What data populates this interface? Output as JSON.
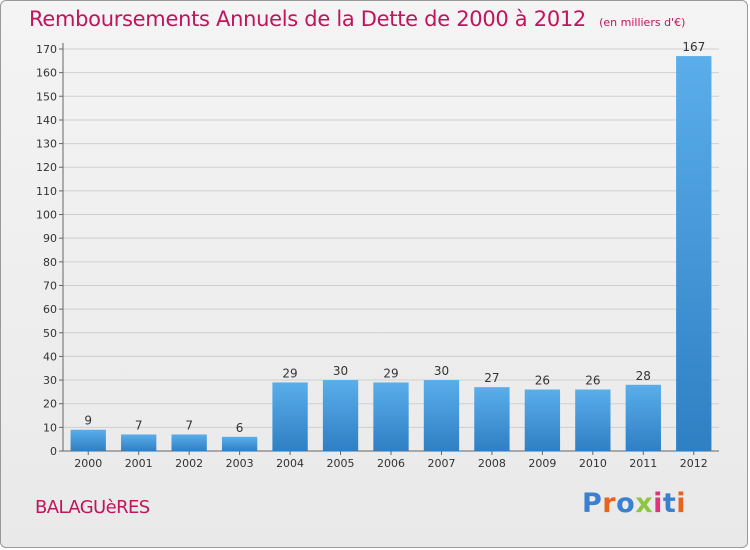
{
  "header": {
    "title": "Remboursements Annuels de la Dette de 2000 à 2012",
    "unit": "(en milliers d'€)"
  },
  "commune": "BALAGUèRES",
  "logo": {
    "text": "Proxiti",
    "letter_colors": [
      "#3a7fd0",
      "#e8641e",
      "#3a7fd0",
      "#8dc63f",
      "#e0347a",
      "#3a7fd0",
      "#e8641e"
    ]
  },
  "colors": {
    "bar_light": "#5aaeea",
    "bar_dark": "#2f7fc4",
    "grid": "#cfcfcf",
    "title": "#c0145c"
  },
  "chart_data": {
    "type": "bar",
    "title": "Remboursements Annuels de la Dette de 2000 à 2012",
    "xlabel": "",
    "ylabel": "",
    "categories": [
      "2000",
      "2001",
      "2002",
      "2003",
      "2004",
      "2005",
      "2006",
      "2007",
      "2008",
      "2009",
      "2010",
      "2011",
      "2012"
    ],
    "values": [
      9,
      7,
      7,
      6,
      29,
      30,
      29,
      30,
      27,
      26,
      26,
      28,
      167
    ],
    "ylim": [
      0,
      170
    ],
    "yticks": [
      0,
      10,
      20,
      30,
      40,
      50,
      60,
      70,
      80,
      90,
      100,
      110,
      120,
      130,
      140,
      150,
      160,
      170
    ],
    "grid": true,
    "legend": "none"
  }
}
